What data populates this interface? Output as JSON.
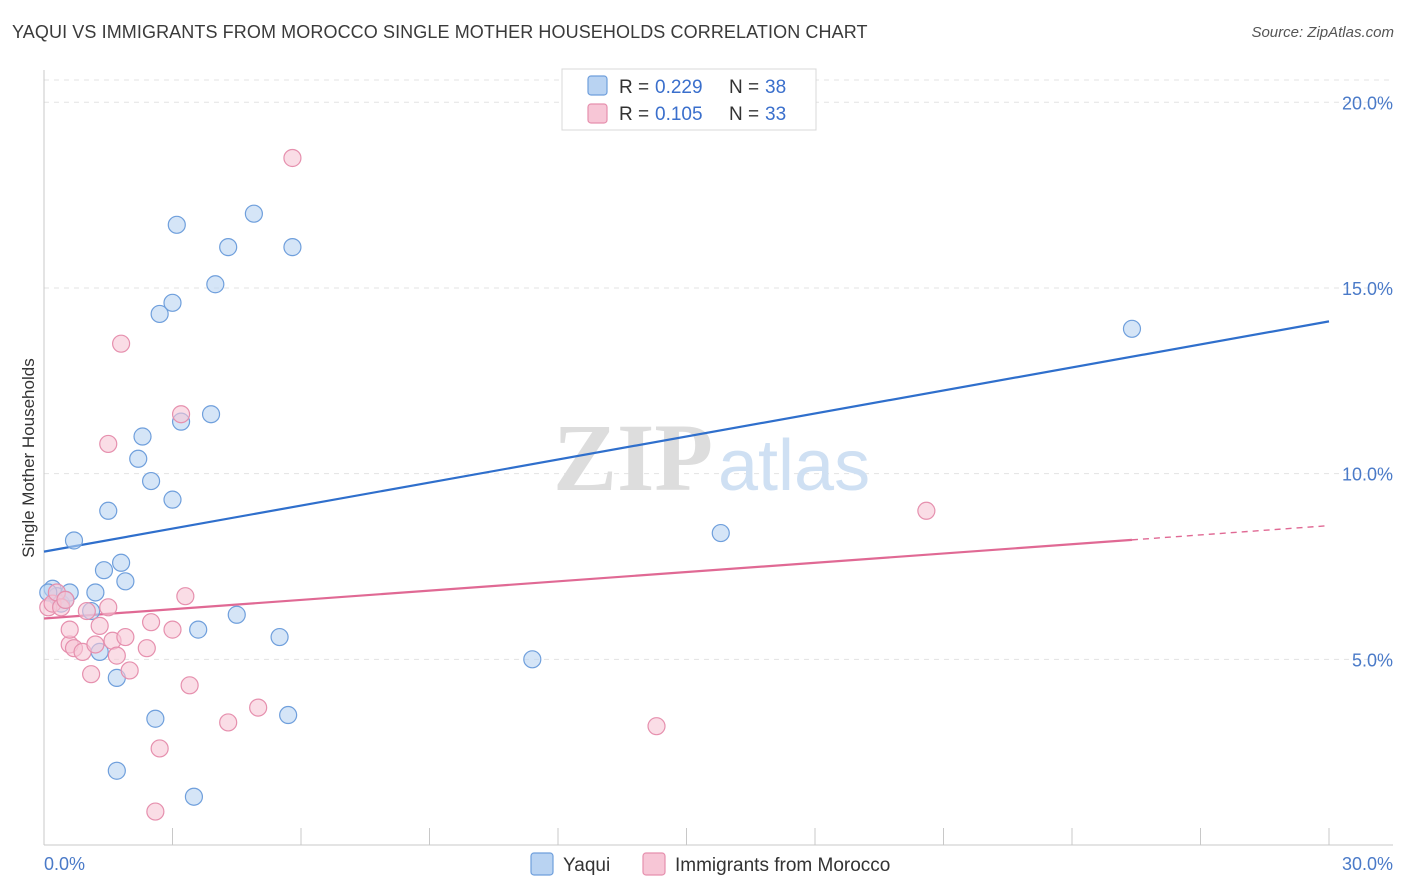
{
  "title": "YAQUI VS IMMIGRANTS FROM MOROCCO SINGLE MOTHER HOUSEHOLDS CORRELATION CHART",
  "source": "Source: ZipAtlas.com",
  "watermark": {
    "zip": "ZIP",
    "atlas": "atlas"
  },
  "colors": {
    "yaqui_fill": "#b9d3f2",
    "yaqui_stroke": "#6f9fdc",
    "yaqui_line": "#2f6fcc",
    "morocco_fill": "#f7c6d6",
    "morocco_stroke": "#e690ae",
    "morocco_line": "#e06994",
    "grid": "#e3e3e3",
    "tick_text": "#4a7ac8"
  },
  "chart_data": {
    "type": "scatter",
    "xlabel": "",
    "ylabel": "Single Mother Households",
    "xlim": [
      0,
      30
    ],
    "ylim": [
      0,
      20.6
    ],
    "x_tick_labels": [
      "0.0%",
      "30.0%"
    ],
    "y_ticks": [
      5,
      10,
      15,
      20
    ],
    "y_tick_labels": [
      "5.0%",
      "10.0%",
      "15.0%",
      "20.0%"
    ],
    "legend": [
      {
        "series": "Yaqui",
        "r_label": "R = ",
        "r_value": "0.229",
        "n_label": "N = ",
        "n_value": "38"
      },
      {
        "series": "Immigrants from Morocco",
        "r_label": "R = ",
        "r_value": "0.105",
        "n_label": "N = ",
        "n_value": "33"
      }
    ],
    "series": [
      {
        "name": "Yaqui",
        "trend": {
          "x0": 0,
          "y0": 7.9,
          "x1": 30,
          "y1": 14.1,
          "dashed_from": null
        },
        "points": [
          [
            0.2,
            6.9
          ],
          [
            0.3,
            6.7
          ],
          [
            0.4,
            6.5
          ],
          [
            0.6,
            6.8
          ],
          [
            0.7,
            8.2
          ],
          [
            1.2,
            6.8
          ],
          [
            1.3,
            5.2
          ],
          [
            1.4,
            7.4
          ],
          [
            1.5,
            9.0
          ],
          [
            1.1,
            6.3
          ],
          [
            1.8,
            7.6
          ],
          [
            1.9,
            7.1
          ],
          [
            2.2,
            10.4
          ],
          [
            2.3,
            11.0
          ],
          [
            2.5,
            9.8
          ],
          [
            2.7,
            14.3
          ],
          [
            3.0,
            14.6
          ],
          [
            3.0,
            9.3
          ],
          [
            3.1,
            16.7
          ],
          [
            3.2,
            11.4
          ],
          [
            3.6,
            5.8
          ],
          [
            3.9,
            11.6
          ],
          [
            4.0,
            15.1
          ],
          [
            4.3,
            16.1
          ],
          [
            4.5,
            6.2
          ],
          [
            4.9,
            17.0
          ],
          [
            5.5,
            5.6
          ],
          [
            5.7,
            3.5
          ],
          [
            5.8,
            16.1
          ],
          [
            1.7,
            4.5
          ],
          [
            2.6,
            3.4
          ],
          [
            1.7,
            2.0
          ],
          [
            3.5,
            1.3
          ],
          [
            11.4,
            5.0
          ],
          [
            15.8,
            8.4
          ],
          [
            25.4,
            13.9
          ],
          [
            0.1,
            6.8
          ],
          [
            0.5,
            6.6
          ]
        ]
      },
      {
        "name": "Immigrants from Morocco",
        "trend": {
          "x0": 0,
          "y0": 6.1,
          "x1": 30,
          "y1": 8.6,
          "dashed_from": 25.4
        },
        "points": [
          [
            0.1,
            6.4
          ],
          [
            0.2,
            6.5
          ],
          [
            0.3,
            6.8
          ],
          [
            0.4,
            6.4
          ],
          [
            0.5,
            6.6
          ],
          [
            0.6,
            5.4
          ],
          [
            0.6,
            5.8
          ],
          [
            0.7,
            5.3
          ],
          [
            0.9,
            5.2
          ],
          [
            1.0,
            6.3
          ],
          [
            1.1,
            4.6
          ],
          [
            1.2,
            5.4
          ],
          [
            1.3,
            5.9
          ],
          [
            1.5,
            6.4
          ],
          [
            1.5,
            10.8
          ],
          [
            1.6,
            5.5
          ],
          [
            1.7,
            5.1
          ],
          [
            1.8,
            13.5
          ],
          [
            1.9,
            5.6
          ],
          [
            2.0,
            4.7
          ],
          [
            2.4,
            5.3
          ],
          [
            2.5,
            6.0
          ],
          [
            2.6,
            0.9
          ],
          [
            2.7,
            2.6
          ],
          [
            3.0,
            5.8
          ],
          [
            3.2,
            11.6
          ],
          [
            3.3,
            6.7
          ],
          [
            3.4,
            4.3
          ],
          [
            4.3,
            3.3
          ],
          [
            5.0,
            3.7
          ],
          [
            5.8,
            18.5
          ],
          [
            14.3,
            3.2
          ],
          [
            20.6,
            9.0
          ]
        ]
      }
    ]
  }
}
